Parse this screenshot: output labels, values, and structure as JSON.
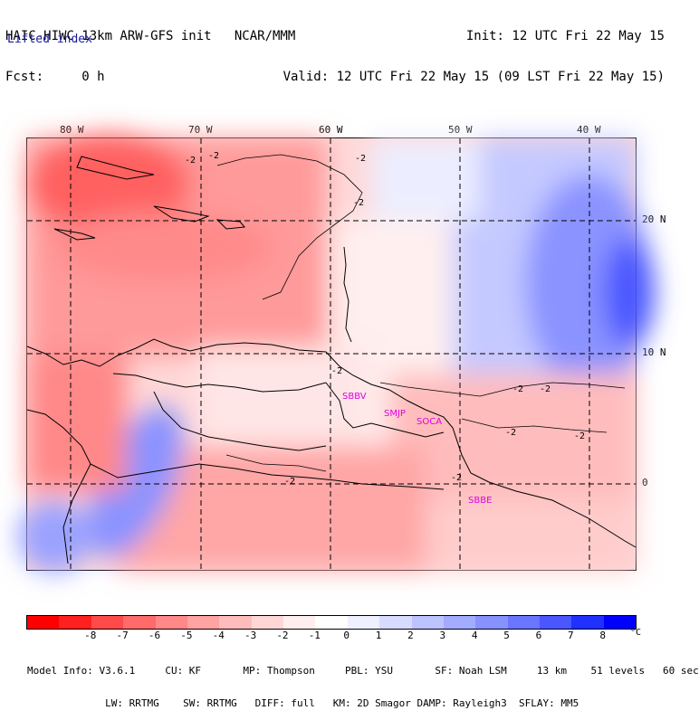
{
  "header": {
    "line1_left": "HAIC-HIWC 13km ARW-GFS init   NCAR/MMM",
    "line2_left": "Fcst:     0 h",
    "line1_right": "Init: 12 UTC Fri 22 May 15",
    "line2_right": "Valid: 12 UTC Fri 22 May 15 (09 LST Fri 22 May 15)"
  },
  "field_name": "Lifted index",
  "map": {
    "lon_labels": [
      "80 W",
      "70 W",
      "60 W",
      "50 W",
      "40 W"
    ],
    "lat_labels": [
      "20 N",
      "10 N",
      "0"
    ],
    "contour_labels": [
      "-2",
      "-2",
      "-2",
      "-2",
      "-2",
      "-2",
      "-2",
      "-2",
      "-2",
      "-2",
      "-2"
    ],
    "stations": [
      "SBBV",
      "SMJP",
      "SOCA",
      "SBBE"
    ],
    "station_color": "#e000e0",
    "grid_style": "dashed"
  },
  "colorbar": {
    "colors": [
      "#ff0000",
      "#ff2020",
      "#ff4a4a",
      "#ff6a6a",
      "#ff8888",
      "#ffa3a3",
      "#ffbcbc",
      "#ffd6d6",
      "#ffeeee",
      "#ffffff",
      "#eef0ff",
      "#d6dbff",
      "#bcc3ff",
      "#a3abff",
      "#8892ff",
      "#6a76ff",
      "#4a56ff",
      "#2030ff",
      "#0000ff"
    ],
    "ticks": [
      "-8",
      "-7",
      "-6",
      "-5",
      "-4",
      "-3",
      "-2",
      "-1",
      "0",
      "1",
      "2",
      "3",
      "4",
      "5",
      "6",
      "7",
      "8"
    ],
    "unit": "°C"
  },
  "model_info": {
    "line1": "Model Info: V3.6.1     CU: KF       MP: Thompson     PBL: YSU       SF: Noah LSM     13 km    51 levels   60 sec",
    "line2": "             LW: RRTMG    SW: RRTMG   DIFF: full   KM: 2D Smagor DAMP: Rayleigh3  SFLAY: MM5"
  }
}
